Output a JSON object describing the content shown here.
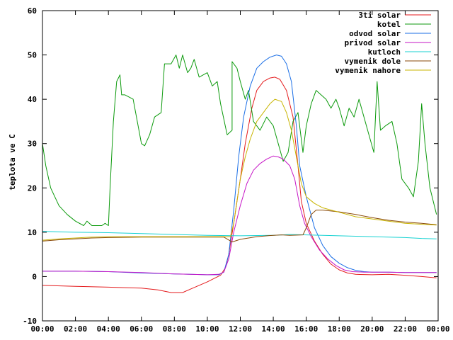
{
  "chart_data": {
    "type": "line",
    "ylabel": "teplota ve C",
    "xlim": [
      0,
      24
    ],
    "ylim": [
      -10,
      60
    ],
    "grid": false,
    "legend_position": "top-right",
    "x_ticks": [
      {
        "v": 0,
        "label": "00:00"
      },
      {
        "v": 2,
        "label": "02:00"
      },
      {
        "v": 4,
        "label": "04:00"
      },
      {
        "v": 6,
        "label": "06:00"
      },
      {
        "v": 8,
        "label": "08:00"
      },
      {
        "v": 10,
        "label": "10:00"
      },
      {
        "v": 12,
        "label": "12:00"
      },
      {
        "v": 14,
        "label": "14:00"
      },
      {
        "v": 16,
        "label": "16:00"
      },
      {
        "v": 18,
        "label": "18:00"
      },
      {
        "v": 20,
        "label": "20:00"
      },
      {
        "v": 22,
        "label": "22:00"
      },
      {
        "v": 24,
        "label": "00:00"
      }
    ],
    "y_ticks": [
      {
        "v": -10,
        "label": "-10"
      },
      {
        "v": 0,
        "label": "0"
      },
      {
        "v": 10,
        "label": "10"
      },
      {
        "v": 20,
        "label": "20"
      },
      {
        "v": 30,
        "label": "30"
      },
      {
        "v": 40,
        "label": "40"
      },
      {
        "v": 50,
        "label": "50"
      },
      {
        "v": 60,
        "label": "60"
      }
    ],
    "series": [
      {
        "name": "3ti solar",
        "color": "#e41a1c",
        "points": [
          [
            0,
            -2
          ],
          [
            2,
            -2.2
          ],
          [
            4,
            -2.4
          ],
          [
            5,
            -2.5
          ],
          [
            6,
            -2.6
          ],
          [
            7,
            -3
          ],
          [
            7.8,
            -3.6
          ],
          [
            8.5,
            -3.6
          ],
          [
            9,
            -2.8
          ],
          [
            10,
            -1.2
          ],
          [
            10.8,
            0.3
          ],
          [
            11.1,
            2
          ],
          [
            11.3,
            5
          ],
          [
            11.6,
            12
          ],
          [
            12,
            22
          ],
          [
            12.3,
            30
          ],
          [
            12.7,
            38
          ],
          [
            13,
            42
          ],
          [
            13.4,
            44
          ],
          [
            13.8,
            44.8
          ],
          [
            14.1,
            45
          ],
          [
            14.4,
            44.5
          ],
          [
            14.8,
            42
          ],
          [
            15.2,
            36
          ],
          [
            15.5,
            25
          ],
          [
            15.7,
            17
          ],
          [
            16,
            12
          ],
          [
            16.5,
            8
          ],
          [
            17,
            5
          ],
          [
            17.5,
            2.8
          ],
          [
            18,
            1.5
          ],
          [
            18.5,
            0.8
          ],
          [
            19,
            0.5
          ],
          [
            20,
            0.4
          ],
          [
            21,
            0.5
          ],
          [
            22,
            0.3
          ],
          [
            23,
            0
          ],
          [
            23.9,
            -0.3
          ]
        ]
      },
      {
        "name": "kotel",
        "color": "#0c9a0c",
        "points": [
          [
            0,
            30
          ],
          [
            0.2,
            25
          ],
          [
            0.5,
            20
          ],
          [
            1,
            16
          ],
          [
            1.5,
            14
          ],
          [
            2,
            12.5
          ],
          [
            2.5,
            11.5
          ],
          [
            2.7,
            12.5
          ],
          [
            3,
            11.5
          ],
          [
            3.6,
            11.5
          ],
          [
            3.8,
            12
          ],
          [
            4,
            11.5
          ],
          [
            4.1,
            20
          ],
          [
            4.3,
            35
          ],
          [
            4.5,
            44
          ],
          [
            4.7,
            45.5
          ],
          [
            4.8,
            41
          ],
          [
            5,
            41
          ],
          [
            5.5,
            40
          ],
          [
            5.7,
            36
          ],
          [
            6,
            30
          ],
          [
            6.2,
            29.5
          ],
          [
            6.5,
            32
          ],
          [
            6.8,
            36
          ],
          [
            7.2,
            37
          ],
          [
            7.4,
            48
          ],
          [
            7.8,
            48
          ],
          [
            8.1,
            50
          ],
          [
            8.3,
            47
          ],
          [
            8.5,
            50
          ],
          [
            8.8,
            46
          ],
          [
            9,
            47
          ],
          [
            9.2,
            49
          ],
          [
            9.5,
            45
          ],
          [
            10,
            46
          ],
          [
            10.3,
            43
          ],
          [
            10.6,
            44
          ],
          [
            10.8,
            39
          ],
          [
            11.2,
            32
          ],
          [
            11.5,
            33
          ],
          [
            11.5,
            48.5
          ],
          [
            11.8,
            47
          ],
          [
            12,
            44
          ],
          [
            12.3,
            40
          ],
          [
            12.5,
            42
          ],
          [
            12.8,
            35
          ],
          [
            13.2,
            33
          ],
          [
            13.6,
            36
          ],
          [
            14,
            34
          ],
          [
            14.3,
            30
          ],
          [
            14.6,
            26
          ],
          [
            14.9,
            28
          ],
          [
            15.2,
            35
          ],
          [
            15.5,
            37
          ],
          [
            15.8,
            28
          ],
          [
            16,
            34
          ],
          [
            16.3,
            39
          ],
          [
            16.6,
            42
          ],
          [
            16.9,
            41
          ],
          [
            17.2,
            40
          ],
          [
            17.5,
            38
          ],
          [
            17.8,
            40
          ],
          [
            18,
            38
          ],
          [
            18.3,
            34
          ],
          [
            18.6,
            38
          ],
          [
            18.9,
            36
          ],
          [
            19.2,
            40
          ],
          [
            19.5,
            36
          ],
          [
            19.8,
            32
          ],
          [
            20.1,
            28
          ],
          [
            20.3,
            44
          ],
          [
            20.5,
            33
          ],
          [
            20.8,
            34
          ],
          [
            21.2,
            35
          ],
          [
            21.5,
            30
          ],
          [
            21.8,
            22
          ],
          [
            22.2,
            20
          ],
          [
            22.5,
            18
          ],
          [
            22.8,
            26
          ],
          [
            23,
            39
          ],
          [
            23.2,
            30
          ],
          [
            23.5,
            20
          ],
          [
            23.9,
            14
          ]
        ]
      },
      {
        "name": "odvod solar",
        "color": "#1a6ee6",
        "points": [
          [
            0,
            1.2
          ],
          [
            2,
            1.2
          ],
          [
            4,
            1.1
          ],
          [
            6,
            0.8
          ],
          [
            8,
            0.6
          ],
          [
            10,
            0.4
          ],
          [
            10.7,
            0.4
          ],
          [
            11,
            1
          ],
          [
            11.3,
            5
          ],
          [
            11.6,
            15
          ],
          [
            11.9,
            27
          ],
          [
            12.2,
            36
          ],
          [
            12.6,
            43
          ],
          [
            13,
            47
          ],
          [
            13.4,
            48.5
          ],
          [
            13.8,
            49.5
          ],
          [
            14.2,
            50
          ],
          [
            14.5,
            49.7
          ],
          [
            14.8,
            48
          ],
          [
            15.1,
            44
          ],
          [
            15.4,
            34
          ],
          [
            15.6,
            25
          ],
          [
            16,
            18
          ],
          [
            16.5,
            11
          ],
          [
            17,
            7
          ],
          [
            17.5,
            4.5
          ],
          [
            18,
            3
          ],
          [
            18.5,
            2
          ],
          [
            19,
            1.4
          ],
          [
            19.5,
            1.1
          ],
          [
            20,
            1
          ],
          [
            21,
            1
          ],
          [
            22,
            0.9
          ],
          [
            23,
            0.9
          ],
          [
            23.9,
            0.9
          ]
        ]
      },
      {
        "name": "privod solar",
        "color": "#c616c6",
        "points": [
          [
            0,
            1.2
          ],
          [
            2,
            1.2
          ],
          [
            4,
            1.1
          ],
          [
            6,
            0.9
          ],
          [
            8,
            0.6
          ],
          [
            10,
            0.4
          ],
          [
            10.7,
            0.5
          ],
          [
            11,
            1
          ],
          [
            11.3,
            4
          ],
          [
            11.6,
            10
          ],
          [
            12,
            16
          ],
          [
            12.4,
            21
          ],
          [
            12.8,
            24
          ],
          [
            13.2,
            25.5
          ],
          [
            13.6,
            26.5
          ],
          [
            14,
            27.2
          ],
          [
            14.3,
            27
          ],
          [
            14.6,
            26.5
          ],
          [
            15,
            25
          ],
          [
            15.3,
            22
          ],
          [
            15.6,
            16
          ],
          [
            15.9,
            12
          ],
          [
            16.3,
            9
          ],
          [
            16.8,
            6
          ],
          [
            17.3,
            4
          ],
          [
            17.8,
            2.5
          ],
          [
            18.3,
            1.5
          ],
          [
            18.8,
            1.1
          ],
          [
            19.5,
            1
          ],
          [
            20,
            1
          ],
          [
            21,
            1
          ],
          [
            22,
            0.9
          ],
          [
            23,
            0.9
          ],
          [
            23.9,
            0.9
          ]
        ]
      },
      {
        "name": "kutloch",
        "color": "#17d2d2",
        "points": [
          [
            0,
            10.2
          ],
          [
            2,
            10
          ],
          [
            4,
            9.9
          ],
          [
            6,
            9.7
          ],
          [
            8,
            9.5
          ],
          [
            10,
            9.3
          ],
          [
            12,
            9.2
          ],
          [
            14,
            9.3
          ],
          [
            15,
            9.5
          ],
          [
            16,
            9.4
          ],
          [
            17,
            9.3
          ],
          [
            18,
            9.2
          ],
          [
            19,
            9.1
          ],
          [
            20,
            9
          ],
          [
            21,
            8.9
          ],
          [
            22,
            8.8
          ],
          [
            23,
            8.6
          ],
          [
            23.9,
            8.5
          ]
        ]
      },
      {
        "name": "vymenik dole",
        "color": "#8a4a08",
        "points": [
          [
            0,
            8
          ],
          [
            1,
            8.3
          ],
          [
            2,
            8.5
          ],
          [
            3,
            8.7
          ],
          [
            4,
            8.8
          ],
          [
            6,
            8.9
          ],
          [
            8,
            8.9
          ],
          [
            10,
            8.9
          ],
          [
            11,
            8.9
          ],
          [
            11.5,
            7.8
          ],
          [
            12,
            8.4
          ],
          [
            13,
            9
          ],
          [
            14,
            9.3
          ],
          [
            14.5,
            9.4
          ],
          [
            15,
            9.3
          ],
          [
            15.8,
            9.4
          ],
          [
            16,
            11
          ],
          [
            16.3,
            14
          ],
          [
            16.6,
            15
          ],
          [
            17,
            15
          ],
          [
            18,
            14.6
          ],
          [
            19,
            14
          ],
          [
            20,
            13.3
          ],
          [
            21,
            12.7
          ],
          [
            22,
            12.3
          ],
          [
            23,
            12
          ],
          [
            23.9,
            11.7
          ]
        ]
      },
      {
        "name": "vymenik nahore",
        "color": "#c8b400",
        "points": [
          [
            0,
            8.2
          ],
          [
            1,
            8.5
          ],
          [
            2,
            8.7
          ],
          [
            3,
            8.9
          ],
          [
            4,
            9
          ],
          [
            6,
            9
          ],
          [
            8,
            9
          ],
          [
            10,
            9
          ],
          [
            11,
            9
          ],
          [
            11.4,
            9
          ],
          [
            11.6,
            12
          ],
          [
            11.8,
            17
          ],
          [
            12,
            22
          ],
          [
            12.3,
            27
          ],
          [
            12.6,
            31
          ],
          [
            13,
            35
          ],
          [
            13.4,
            37
          ],
          [
            13.8,
            39
          ],
          [
            14.1,
            40
          ],
          [
            14.5,
            39.5
          ],
          [
            14.8,
            37
          ],
          [
            15.1,
            33
          ],
          [
            15.4,
            27
          ],
          [
            15.7,
            21
          ],
          [
            16,
            18
          ],
          [
            16.5,
            16.5
          ],
          [
            17,
            15.5
          ],
          [
            18,
            14.5
          ],
          [
            19,
            13.5
          ],
          [
            20,
            13
          ],
          [
            21,
            12.5
          ],
          [
            22,
            12
          ],
          [
            23,
            11.8
          ],
          [
            23.9,
            11.6
          ]
        ]
      }
    ]
  }
}
